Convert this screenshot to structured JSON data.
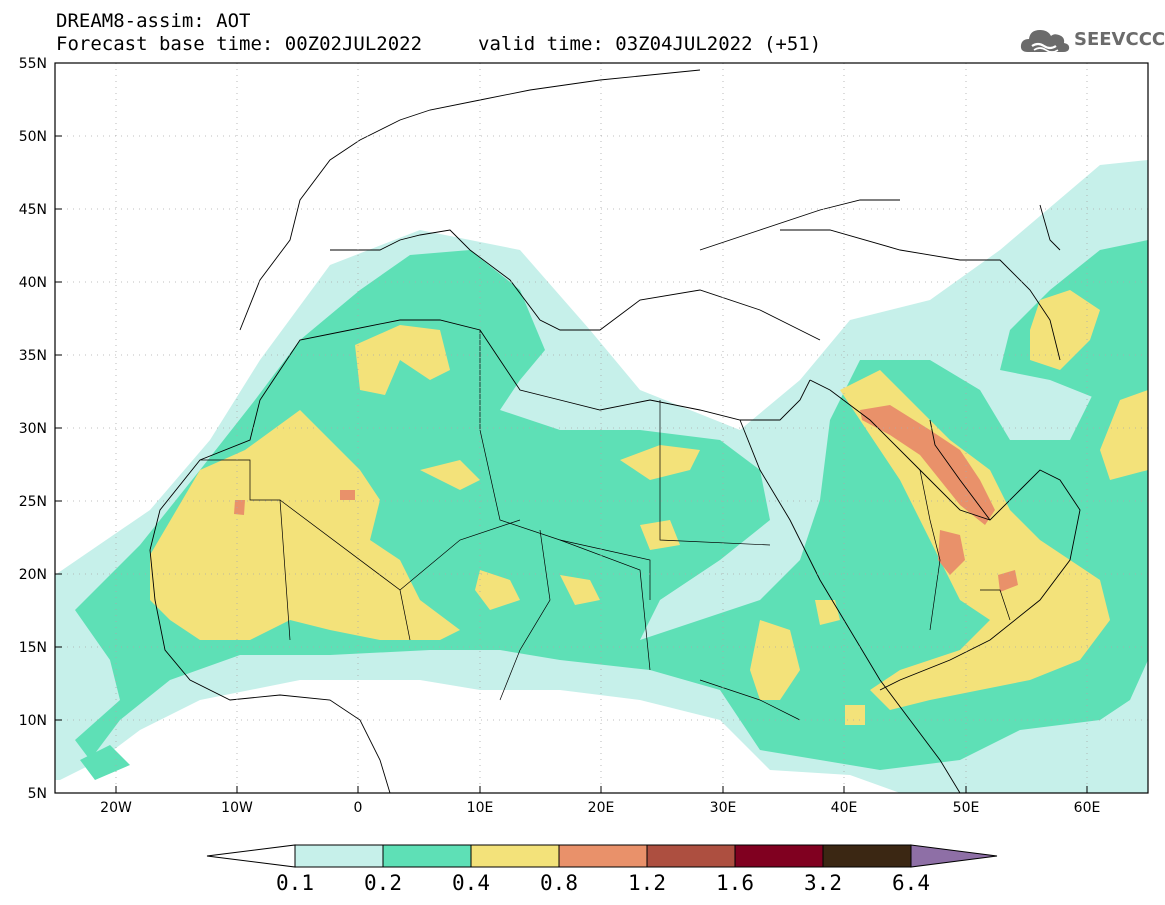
{
  "header": {
    "title": "DREAM8-assim: AOT",
    "base_time": "Forecast base time: 00Z02JUL2022",
    "valid_time": "valid time: 03Z04JUL2022 (+51)"
  },
  "logo": {
    "text": "SEEVCCC",
    "icon": "cloud-icon",
    "color": "#6b6b6b"
  },
  "map": {
    "lat_ticks": [
      "55N",
      "50N",
      "45N",
      "40N",
      "35N",
      "30N",
      "25N",
      "20N",
      "15N",
      "10N",
      "5N"
    ],
    "lon_ticks": [
      "20W",
      "10W",
      "0",
      "10E",
      "20E",
      "30E",
      "40E",
      "50E",
      "60E"
    ],
    "extent": {
      "lon": [
        -25,
        65
      ],
      "lat": [
        5,
        55
      ]
    }
  },
  "colorbar": {
    "labels": [
      "0.1",
      "0.2",
      "0.4",
      "0.8",
      "1.2",
      "1.6",
      "3.2",
      "6.4"
    ],
    "colors": [
      "#c6f0ea",
      "#5ee0b6",
      "#f3e27a",
      "#e9916a",
      "#ad4f40",
      "#800020",
      "#3b2713"
    ],
    "under_color": "#ffffff",
    "over_color": "#8e6fa6"
  }
}
